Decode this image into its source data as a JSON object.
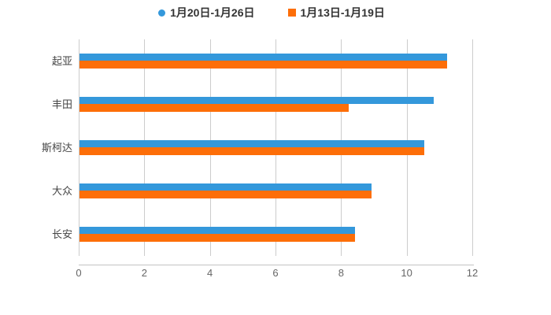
{
  "chart_data": {
    "type": "bar",
    "orientation": "horizontal",
    "title": "",
    "categories": [
      "起亚",
      "丰田",
      "斯柯达",
      "大众",
      "长安"
    ],
    "series": [
      {
        "name": "1月20日-1月26日",
        "color": "#3498db",
        "marker": "circle",
        "values": [
          11.2,
          10.8,
          10.5,
          8.9,
          8.4
        ]
      },
      {
        "name": "1月13日-1月19日",
        "color": "#fd6e08",
        "marker": "square",
        "values": [
          11.2,
          8.2,
          10.5,
          8.9,
          8.4
        ]
      }
    ],
    "xlabel": "",
    "ylabel": "",
    "xlim": [
      0,
      12
    ],
    "xticks": [
      0,
      2,
      4,
      6,
      8,
      10,
      12
    ],
    "x_tick_labels": [
      "0",
      "2",
      "4",
      "6",
      "8",
      "10",
      "12"
    ],
    "grid": true,
    "gridline_color": "#cccccc",
    "axis_line_color": "#c3c3c3",
    "legend_position": "top",
    "background_color": "#ffffff"
  }
}
